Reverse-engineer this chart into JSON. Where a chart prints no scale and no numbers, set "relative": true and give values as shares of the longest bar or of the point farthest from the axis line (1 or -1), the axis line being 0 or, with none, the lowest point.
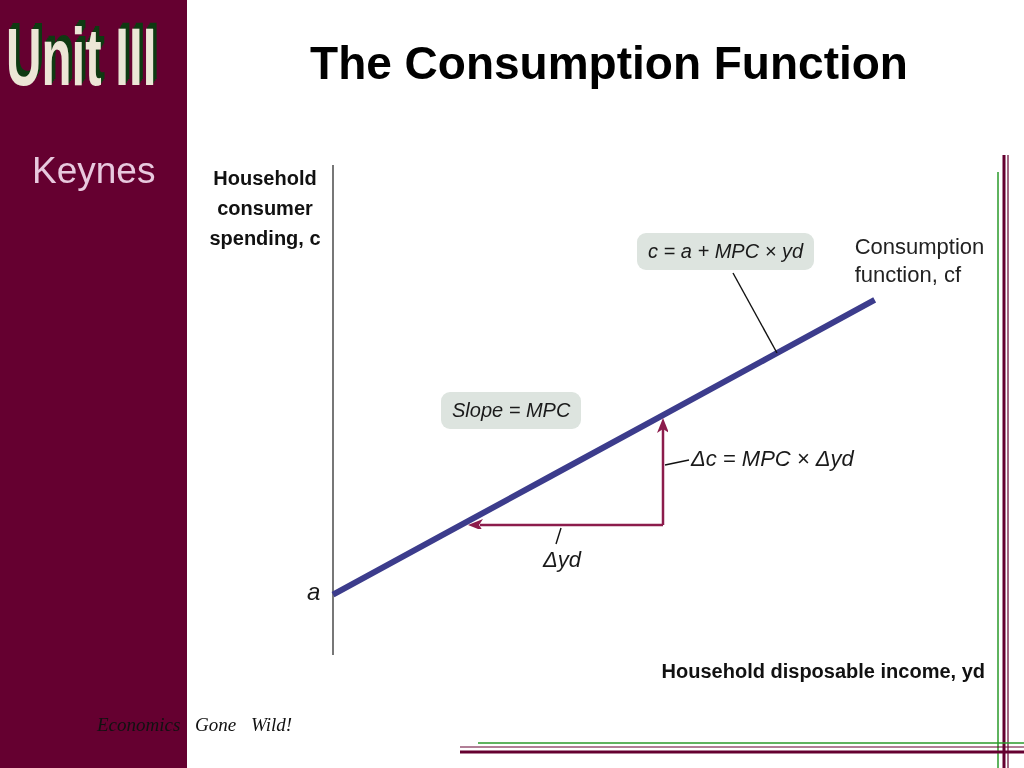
{
  "chart_data": {
    "type": "line",
    "title": "The Consumption Function",
    "xlabel": "Household disposable income, yd",
    "ylabel": "Household consumer spending, c",
    "categories": [
      null,
      null,
      null,
      null,
      null,
      null,
      null
    ],
    "series": [
      {
        "name": "Consumption function, cf",
        "color": "#3c3c8c",
        "values": [
          0.17,
          0.336,
          0.502,
          0.668,
          0.834,
          1,
          null
        ]
      }
    ],
    "relative": true,
    "annotations": [
      "Unit III",
      "Keynes",
      "a",
      "c = a + MPC × yd",
      "Slope = MPC",
      "Δc = MPC × Δyd",
      "Δyd",
      "Economics Gone Wild!"
    ]
  }
}
